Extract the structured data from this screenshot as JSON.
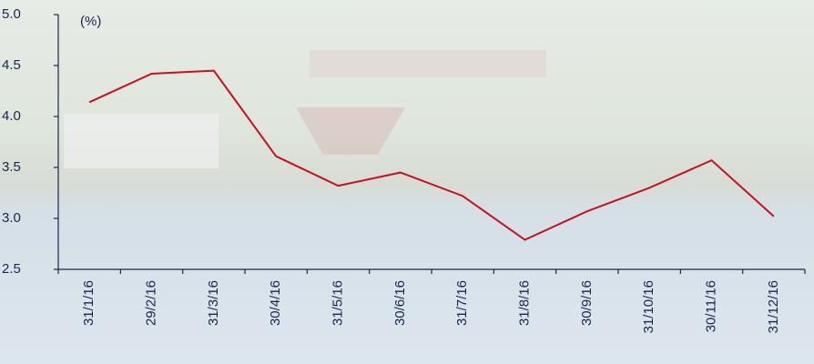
{
  "chart_data": {
    "type": "line",
    "y_label": "(%)",
    "categories": [
      "31/1/16",
      "29/2/16",
      "31/3/16",
      "30/4/16",
      "31/5/16",
      "30/6/16",
      "31/7/16",
      "31/8/16",
      "30/9/16",
      "31/10/16",
      "30/11/16",
      "31/12/16"
    ],
    "series": [
      {
        "color": "#c8101e",
        "values": [
          4.14,
          4.42,
          4.45,
          3.61,
          3.32,
          3.45,
          3.22,
          2.79,
          3.07,
          3.3,
          3.57,
          3.02
        ]
      }
    ],
    "ylim": [
      2.5,
      5.0
    ],
    "yticks": [
      2.5,
      {
        "value": 3.0,
        "label": "3.0"
      },
      3.5,
      {
        "value": 4.0,
        "label": "4.0"
      },
      4.5,
      {
        "value": 5.0,
        "label": "5.0"
      }
    ]
  }
}
